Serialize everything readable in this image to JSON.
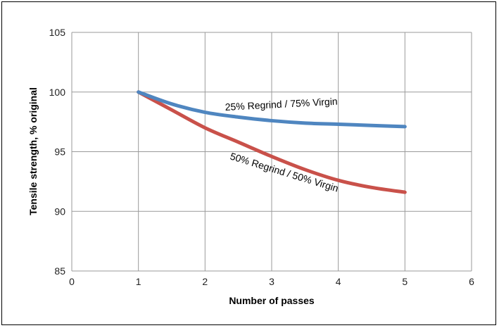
{
  "chart_data": {
    "type": "line",
    "title": "",
    "xlabel": "Number of passes",
    "ylabel": "Tensile strength, % original",
    "xlim": [
      0,
      6
    ],
    "ylim": [
      85,
      105
    ],
    "xticks": [
      "0",
      "1",
      "2",
      "3",
      "4",
      "5",
      "6"
    ],
    "yticks": [
      "85",
      "90",
      "95",
      "100",
      "105"
    ],
    "grid": true,
    "series": [
      {
        "name": "25% Regrind / 75% Virgin",
        "color": "#4f86c0",
        "x": [
          1,
          1.5,
          2,
          2.5,
          3,
          3.5,
          4,
          4.5,
          5
        ],
        "y": [
          100,
          99.0,
          98.3,
          97.9,
          97.6,
          97.4,
          97.3,
          97.2,
          97.1
        ]
      },
      {
        "name": "50% Regrind / 50% Virgin",
        "color": "#c9514a",
        "x": [
          1,
          1.5,
          2,
          2.5,
          3,
          3.5,
          4,
          4.5,
          5
        ],
        "y": [
          100,
          98.5,
          97.0,
          95.8,
          94.6,
          93.5,
          92.6,
          92.0,
          91.6
        ]
      }
    ]
  }
}
